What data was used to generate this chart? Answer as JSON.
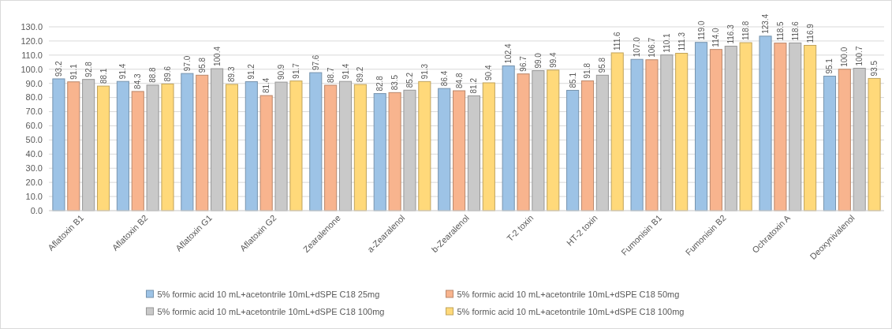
{
  "chart_data": {
    "type": "bar",
    "categories": [
      "Aflatoxin B1",
      "Aflatoxin B2",
      "Aflatoxin G1",
      "Aflatoxin G2",
      "Zearalenone",
      "a-Zearalenol",
      "b-Zearalenol",
      "T-2 toxin",
      "HT-2 toxin",
      "Fumonisin B1",
      "Fumonisin B2",
      "Ochratoxin A",
      "Deoxynivalenol"
    ],
    "series": [
      {
        "name": "5% formic acid 10 mL+acetontrile 10mL+dSPE C18 25mg",
        "color": "#9dc3e6",
        "values": [
          93.2,
          91.4,
          97.0,
          91.2,
          97.6,
          82.8,
          86.4,
          102.4,
          85.1,
          107.0,
          119.0,
          123.4,
          95.1
        ],
        "value_labels": [
          "93.2",
          "91.4",
          "97.0",
          "91.2",
          "97.6",
          "82.8",
          "86.4",
          "102.4",
          "85.1",
          "107.0",
          "119.0",
          "123.4",
          "95.1"
        ]
      },
      {
        "name": "5% formic acid 10 mL+acetontrile 10mL+dSPE C18 50mg",
        "color": "#f8b48e",
        "values": [
          91.1,
          84.3,
          95.8,
          81.4,
          88.7,
          83.5,
          84.8,
          96.7,
          91.8,
          106.7,
          114.0,
          118.5,
          100.0
        ],
        "value_labels": [
          "91.1",
          "84.3",
          "95.8",
          "81.4",
          "88.7",
          "83.5",
          "84.8",
          "96.7",
          "91.8",
          "106.7",
          "114.0",
          "118.5",
          "100.0"
        ]
      },
      {
        "name": "5% formic acid 10 mL+acetontrile 10mL+dSPE C18 100mg",
        "color": "#c9c9c9",
        "values": [
          92.8,
          88.8,
          100.4,
          90.9,
          91.4,
          85.2,
          81.2,
          99.0,
          95.8,
          110.1,
          116.3,
          118.6,
          100.7
        ],
        "value_labels": [
          "92.8",
          "88.8",
          "100.4",
          "90.9",
          "91.4",
          "85.2",
          "81.2",
          "99.0",
          "95.8",
          "110.1",
          "116.3",
          "118.6",
          "100.7"
        ]
      },
      {
        "name": "5% formic acid 10 mL+acetontrile 10mL+dSPE C18 100mg",
        "color": "#ffd97a",
        "values": [
          88.1,
          89.6,
          89.3,
          91.7,
          89.2,
          91.3,
          90.4,
          99.4,
          111.6,
          111.3,
          118.8,
          116.9,
          93.5
        ],
        "value_labels": [
          "88.1",
          "89.6",
          "89.3",
          "91.7",
          "89.2",
          "91.3",
          "90.4",
          "99.4",
          "111.6",
          "111.3",
          "118.8",
          "116.9",
          "93.5"
        ]
      }
    ],
    "ylim": [
      0,
      130
    ],
    "yticks": [
      {
        "value": 0,
        "label": "0.0"
      },
      {
        "value": 10,
        "label": "10.0"
      },
      {
        "value": 20,
        "label": "20.0"
      },
      {
        "value": 30,
        "label": "30.0"
      },
      {
        "value": 40,
        "label": "40.0"
      },
      {
        "value": 50,
        "label": "50.0"
      },
      {
        "value": 60,
        "label": "60.0"
      },
      {
        "value": 70,
        "label": "70.0"
      },
      {
        "value": 80,
        "label": "80.0"
      },
      {
        "value": 90,
        "label": "90.0"
      },
      {
        "value": 100,
        "label": "100.0"
      },
      {
        "value": 110,
        "label": "110.0"
      },
      {
        "value": 120,
        "label": "120.0"
      },
      {
        "value": 130,
        "label": "130.0"
      }
    ],
    "grid": "y",
    "legend": "bottom"
  }
}
